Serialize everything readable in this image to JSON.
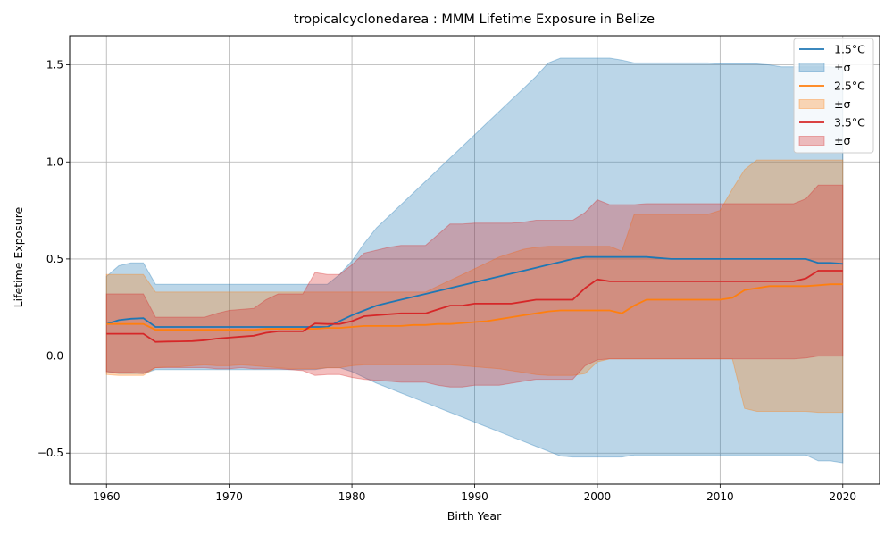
{
  "chart_data": {
    "type": "line",
    "title": "tropicalcyclonedarea : MMM Lifetime Exposure in Belize",
    "xlabel": "Birth Year",
    "ylabel": "Lifetime Exposure",
    "xlim": [
      1957,
      2023
    ],
    "ylim": [
      -0.66,
      1.65
    ],
    "x_ticks": [
      "1960",
      "1970",
      "1980",
      "1990",
      "2000",
      "2010",
      "2020"
    ],
    "y_ticks": [
      "−0.5",
      "0.0",
      "0.5",
      "1.0",
      "1.5"
    ],
    "x_tick_values": [
      1960,
      1970,
      1980,
      1990,
      2000,
      2010,
      2020
    ],
    "y_tick_values": [
      -0.5,
      0.0,
      0.5,
      1.0,
      1.5
    ],
    "grid": true,
    "legend_position": "top-right",
    "years": [
      1960,
      1961,
      1962,
      1963,
      1964,
      1965,
      1966,
      1967,
      1968,
      1969,
      1970,
      1971,
      1972,
      1973,
      1974,
      1975,
      1976,
      1977,
      1978,
      1979,
      1980,
      1981,
      1982,
      1983,
      1984,
      1985,
      1986,
      1987,
      1988,
      1989,
      1990,
      1991,
      1992,
      1993,
      1994,
      1995,
      1996,
      1997,
      1998,
      1999,
      2000,
      2001,
      2002,
      2003,
      2004,
      2005,
      2006,
      2007,
      2008,
      2009,
      2010,
      2011,
      2012,
      2013,
      2014,
      2015,
      2016,
      2017,
      2018,
      2019,
      2020
    ],
    "series": [
      {
        "name": "1.5°C",
        "band_label": "±σ",
        "color": "#1f77b4",
        "fill": "#1f77b4",
        "mean": [
          0.165,
          0.185,
          0.192,
          0.195,
          0.15,
          0.15,
          0.15,
          0.15,
          0.15,
          0.15,
          0.15,
          0.15,
          0.15,
          0.15,
          0.15,
          0.15,
          0.15,
          0.15,
          0.15,
          0.18,
          0.21,
          0.235,
          0.26,
          0.275,
          0.29,
          0.305,
          0.32,
          0.335,
          0.35,
          0.365,
          0.38,
          0.395,
          0.41,
          0.425,
          0.44,
          0.455,
          0.47,
          0.485,
          0.5,
          0.51,
          0.51,
          0.51,
          0.51,
          0.51,
          0.51,
          0.505,
          0.5,
          0.5,
          0.5,
          0.5,
          0.5,
          0.5,
          0.5,
          0.5,
          0.5,
          0.5,
          0.5,
          0.5,
          0.48,
          0.48,
          0.475
        ],
        "lower": [
          -0.08,
          -0.09,
          -0.09,
          -0.09,
          -0.07,
          -0.07,
          -0.07,
          -0.07,
          -0.07,
          -0.07,
          -0.07,
          -0.07,
          -0.07,
          -0.07,
          -0.07,
          -0.07,
          -0.07,
          -0.07,
          -0.06,
          -0.06,
          -0.08,
          -0.11,
          -0.14,
          -0.165,
          -0.19,
          -0.215,
          -0.24,
          -0.265,
          -0.29,
          -0.315,
          -0.34,
          -0.365,
          -0.39,
          -0.415,
          -0.44,
          -0.465,
          -0.49,
          -0.515,
          -0.52,
          -0.52,
          -0.52,
          -0.52,
          -0.52,
          -0.51,
          -0.51,
          -0.51,
          -0.51,
          -0.51,
          -0.51,
          -0.51,
          -0.51,
          -0.51,
          -0.51,
          -0.51,
          -0.51,
          -0.51,
          -0.51,
          -0.51,
          -0.54,
          -0.54,
          -0.55
        ],
        "upper": [
          0.41,
          0.465,
          0.48,
          0.48,
          0.37,
          0.37,
          0.37,
          0.37,
          0.37,
          0.37,
          0.37,
          0.37,
          0.37,
          0.37,
          0.37,
          0.37,
          0.37,
          0.37,
          0.37,
          0.42,
          0.49,
          0.58,
          0.66,
          0.72,
          0.78,
          0.84,
          0.9,
          0.96,
          1.02,
          1.08,
          1.14,
          1.2,
          1.26,
          1.32,
          1.38,
          1.44,
          1.51,
          1.535,
          1.535,
          1.535,
          1.535,
          1.535,
          1.525,
          1.51,
          1.51,
          1.51,
          1.51,
          1.51,
          1.51,
          1.51,
          1.505,
          1.505,
          1.505,
          1.505,
          1.5,
          1.49,
          1.49,
          1.49,
          1.49,
          1.49,
          1.48
        ]
      },
      {
        "name": "2.5°C",
        "band_label": "±σ",
        "color": "#ff7f0e",
        "fill": "#ff7f0e",
        "mean": [
          0.165,
          0.165,
          0.165,
          0.165,
          0.135,
          0.135,
          0.135,
          0.135,
          0.135,
          0.135,
          0.135,
          0.135,
          0.135,
          0.14,
          0.14,
          0.14,
          0.14,
          0.14,
          0.145,
          0.145,
          0.15,
          0.155,
          0.155,
          0.155,
          0.155,
          0.16,
          0.16,
          0.165,
          0.165,
          0.17,
          0.175,
          0.18,
          0.19,
          0.2,
          0.21,
          0.22,
          0.23,
          0.235,
          0.235,
          0.235,
          0.235,
          0.235,
          0.22,
          0.26,
          0.29,
          0.29,
          0.29,
          0.29,
          0.29,
          0.29,
          0.29,
          0.3,
          0.34,
          0.35,
          0.36,
          0.36,
          0.36,
          0.36,
          0.365,
          0.37,
          0.37
        ],
        "lower": [
          -0.095,
          -0.1,
          -0.1,
          -0.1,
          -0.06,
          -0.055,
          -0.055,
          -0.05,
          -0.045,
          -0.05,
          -0.05,
          -0.045,
          -0.05,
          -0.055,
          -0.06,
          -0.065,
          -0.065,
          -0.065,
          -0.06,
          -0.06,
          -0.05,
          -0.045,
          -0.045,
          -0.045,
          -0.045,
          -0.045,
          -0.045,
          -0.045,
          -0.045,
          -0.05,
          -0.055,
          -0.06,
          -0.065,
          -0.075,
          -0.085,
          -0.095,
          -0.1,
          -0.1,
          -0.1,
          -0.09,
          -0.03,
          -0.015,
          -0.015,
          -0.015,
          -0.015,
          -0.015,
          -0.015,
          -0.015,
          -0.015,
          -0.015,
          -0.015,
          -0.015,
          -0.27,
          -0.285,
          -0.285,
          -0.285,
          -0.285,
          -0.285,
          -0.29,
          -0.29,
          -0.29
        ],
        "upper": [
          0.42,
          0.42,
          0.42,
          0.42,
          0.33,
          0.33,
          0.33,
          0.33,
          0.33,
          0.33,
          0.33,
          0.33,
          0.33,
          0.33,
          0.33,
          0.33,
          0.33,
          0.33,
          0.33,
          0.33,
          0.33,
          0.33,
          0.33,
          0.33,
          0.33,
          0.33,
          0.33,
          0.36,
          0.39,
          0.42,
          0.45,
          0.48,
          0.51,
          0.53,
          0.55,
          0.56,
          0.565,
          0.565,
          0.565,
          0.565,
          0.565,
          0.565,
          0.54,
          0.73,
          0.73,
          0.73,
          0.73,
          0.73,
          0.73,
          0.73,
          0.75,
          0.86,
          0.96,
          1.01,
          1.01,
          1.01,
          1.01,
          1.01,
          1.01,
          1.01,
          1.01
        ]
      },
      {
        "name": "3.5°C",
        "band_label": "±σ",
        "color": "#d62728",
        "fill": "#d62728",
        "mean": [
          0.115,
          0.115,
          0.115,
          0.115,
          0.073,
          0.075,
          0.076,
          0.077,
          0.082,
          0.09,
          0.095,
          0.1,
          0.105,
          0.12,
          0.128,
          0.128,
          0.128,
          0.168,
          0.165,
          0.165,
          0.18,
          0.205,
          0.21,
          0.215,
          0.22,
          0.22,
          0.22,
          0.24,
          0.26,
          0.26,
          0.27,
          0.27,
          0.27,
          0.27,
          0.28,
          0.29,
          0.29,
          0.29,
          0.29,
          0.35,
          0.395,
          0.385,
          0.385,
          0.385,
          0.385,
          0.385,
          0.385,
          0.385,
          0.385,
          0.385,
          0.385,
          0.385,
          0.385,
          0.385,
          0.385,
          0.385,
          0.385,
          0.4,
          0.44,
          0.44,
          0.44
        ],
        "lower": [
          -0.08,
          -0.085,
          -0.085,
          -0.09,
          -0.06,
          -0.06,
          -0.06,
          -0.06,
          -0.06,
          -0.065,
          -0.065,
          -0.06,
          -0.065,
          -0.065,
          -0.065,
          -0.07,
          -0.075,
          -0.1,
          -0.095,
          -0.095,
          -0.11,
          -0.12,
          -0.125,
          -0.13,
          -0.135,
          -0.135,
          -0.135,
          -0.15,
          -0.16,
          -0.16,
          -0.15,
          -0.15,
          -0.15,
          -0.14,
          -0.13,
          -0.12,
          -0.12,
          -0.12,
          -0.12,
          -0.05,
          -0.02,
          -0.015,
          -0.015,
          -0.015,
          -0.015,
          -0.015,
          -0.015,
          -0.015,
          -0.015,
          -0.015,
          -0.015,
          -0.015,
          -0.015,
          -0.015,
          -0.015,
          -0.015,
          -0.015,
          -0.01,
          0.0,
          0.0,
          0.0
        ],
        "upper": [
          0.32,
          0.32,
          0.32,
          0.32,
          0.2,
          0.2,
          0.2,
          0.2,
          0.2,
          0.22,
          0.235,
          0.24,
          0.245,
          0.29,
          0.32,
          0.32,
          0.32,
          0.43,
          0.42,
          0.42,
          0.47,
          0.53,
          0.545,
          0.56,
          0.57,
          0.57,
          0.57,
          0.625,
          0.68,
          0.68,
          0.685,
          0.685,
          0.685,
          0.685,
          0.69,
          0.7,
          0.7,
          0.7,
          0.7,
          0.74,
          0.805,
          0.78,
          0.78,
          0.78,
          0.785,
          0.785,
          0.785,
          0.785,
          0.785,
          0.785,
          0.785,
          0.785,
          0.785,
          0.785,
          0.785,
          0.785,
          0.785,
          0.81,
          0.88,
          0.88,
          0.88
        ]
      }
    ]
  }
}
